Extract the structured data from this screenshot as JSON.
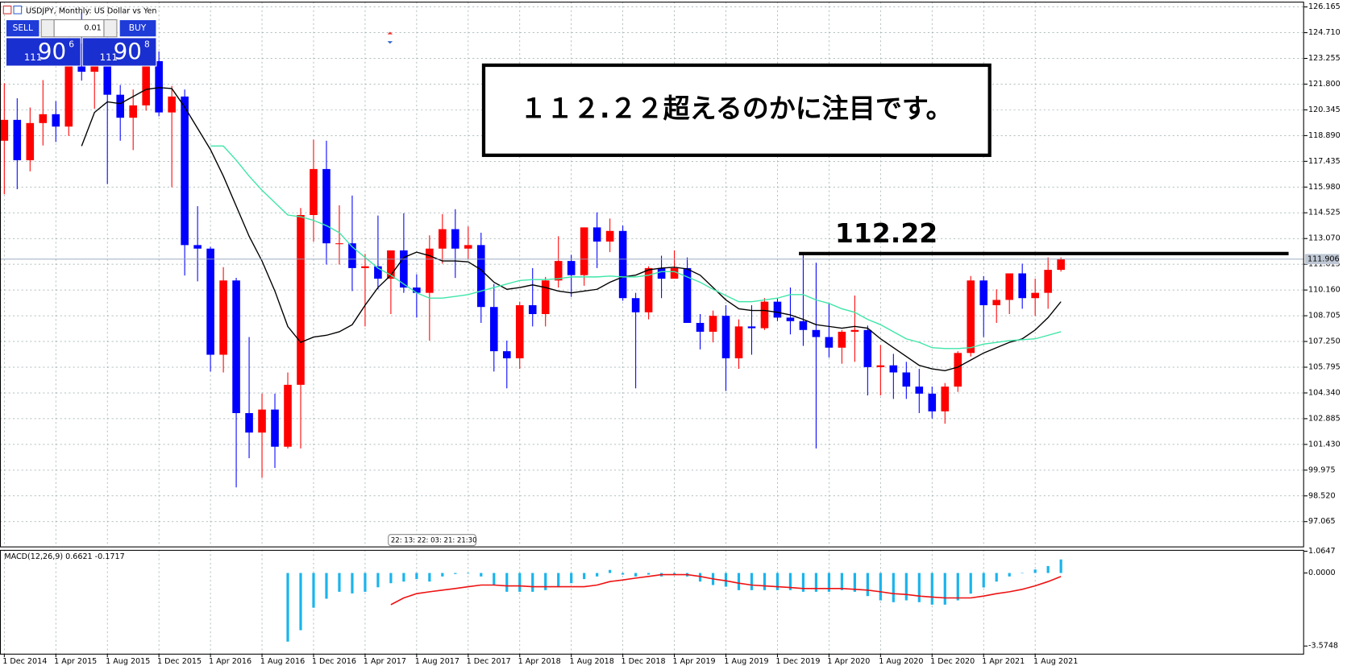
{
  "chart_data": {
    "type": "candlestick",
    "title": "USDJPY, Monthly: US Dollar vs Yen",
    "categories": [
      "1 Dec 2014",
      null,
      null,
      null,
      "1 Apr 2015",
      null,
      null,
      null,
      "1 Aug 2015",
      null,
      null,
      null,
      "1 Dec 2015",
      null,
      null,
      null,
      "1 Apr 2016",
      null,
      null,
      null,
      "1 Aug 2016",
      null,
      null,
      null,
      "1 Dec 2016",
      null,
      null,
      null,
      "1 Apr 2017",
      null,
      null,
      null,
      "1 Aug 2017",
      null,
      null,
      null,
      "1 Dec 2017",
      null,
      null,
      null,
      "1 Apr 2018",
      null,
      null,
      null,
      "1 Aug 2018",
      null,
      null,
      null,
      "1 Dec 2018",
      null,
      null,
      null,
      "1 Apr 2019",
      null,
      null,
      null,
      "1 Aug 2019",
      null,
      null,
      null,
      "1 Dec 2019",
      null,
      null,
      null,
      "1 Apr 2020",
      null,
      null,
      null,
      "1 Aug 2020",
      null,
      null,
      null,
      "1 Dec 2020",
      null,
      null,
      null,
      "1 Apr 2021",
      null,
      null,
      null,
      "1 Aug 2021",
      null,
      null
    ],
    "open": [
      118.6,
      119.78,
      117.5,
      119.6,
      120.1,
      119.4,
      124.1,
      122.5,
      123.9,
      121.2,
      119.9,
      120.6,
      123.1,
      120.2,
      121.1,
      112.7,
      112.5,
      106.5,
      110.7,
      103.2,
      102.1,
      103.4,
      101.3,
      104.8,
      114.4,
      117.0,
      112.8,
      112.8,
      111.4,
      111.5,
      110.8,
      112.4,
      110.3,
      110.0,
      112.5,
      113.6,
      112.5,
      112.7,
      109.2,
      106.7,
      106.3,
      109.3,
      108.8,
      110.7,
      111.8,
      111.0,
      113.7,
      112.9,
      113.5,
      109.7,
      108.9,
      111.4,
      110.8,
      111.4,
      108.3,
      107.8,
      108.7,
      106.3,
      108.1,
      108.0,
      109.5,
      108.6,
      108.4,
      107.9,
      107.5,
      106.9,
      107.8,
      107.9,
      105.8,
      105.9,
      105.5,
      104.7,
      104.3,
      103.3,
      104.7,
      106.6,
      110.7,
      109.3,
      109.6,
      111.1,
      109.7,
      110.0,
      111.3
    ],
    "high": [
      121.85,
      121.0,
      120.48,
      122.03,
      120.84,
      124.46,
      125.86,
      124.58,
      125.3,
      121.75,
      121.5,
      123.76,
      123.65,
      121.7,
      121.5,
      114.9,
      112.6,
      111.45,
      110.85,
      107.5,
      104.3,
      104.3,
      105.5,
      114.8,
      118.66,
      118.6,
      114.95,
      115.5,
      112.2,
      114.37,
      112.4,
      114.5,
      111.05,
      113.25,
      114.45,
      114.73,
      113.75,
      113.4,
      110.5,
      107.3,
      109.5,
      111.4,
      110.9,
      113.2,
      112.15,
      113.7,
      114.55,
      114.2,
      113.8,
      110.0,
      111.5,
      112.1,
      112.4,
      112.0,
      108.8,
      109.0,
      109.3,
      108.5,
      109.3,
      109.7,
      109.7,
      110.3,
      112.2,
      111.7,
      109.4,
      107.9,
      109.85,
      108.15,
      107.05,
      106.55,
      106.1,
      105.7,
      104.7,
      104.9,
      106.7,
      110.95,
      110.95,
      110.2,
      111.1,
      111.65,
      110.8,
      112.0,
      112.0
    ],
    "low": [
      115.57,
      115.86,
      116.87,
      118.33,
      118.53,
      118.87,
      122.0,
      120.41,
      116.15,
      118.6,
      118.07,
      120.3,
      119.98,
      115.97,
      110.98,
      110.65,
      105.55,
      105.5,
      99.0,
      100.65,
      99.55,
      100.1,
      101.2,
      101.2,
      112.9,
      111.6,
      111.6,
      110.1,
      108.1,
      110.2,
      108.8,
      110.0,
      108.6,
      107.3,
      111.65,
      110.84,
      111.9,
      108.3,
      105.55,
      104.6,
      105.7,
      108.1,
      108.1,
      110.3,
      109.77,
      110.4,
      111.4,
      112.3,
      109.55,
      104.6,
      108.5,
      109.7,
      110.8,
      108.3,
      106.8,
      107.2,
      104.45,
      105.7,
      106.5,
      107.9,
      108.4,
      107.65,
      107.0,
      101.2,
      106.35,
      105.99,
      106.1,
      104.2,
      104.2,
      104.0,
      104.0,
      103.2,
      102.9,
      102.6,
      104.4,
      106.4,
      107.5,
      108.3,
      108.8,
      109.1,
      108.7,
      109.1,
      111.2
    ],
    "close": [
      119.78,
      117.5,
      119.6,
      120.1,
      119.4,
      124.1,
      122.5,
      123.9,
      121.2,
      119.9,
      120.6,
      123.1,
      120.2,
      121.1,
      112.7,
      112.5,
      106.5,
      110.7,
      103.2,
      102.1,
      103.4,
      101.3,
      104.8,
      114.4,
      117.0,
      112.8,
      112.8,
      111.4,
      111.5,
      110.8,
      112.4,
      110.3,
      110.0,
      112.5,
      113.6,
      112.5,
      112.7,
      109.2,
      106.7,
      106.3,
      109.3,
      108.8,
      110.7,
      111.8,
      111.0,
      113.7,
      112.9,
      113.5,
      109.7,
      108.9,
      111.4,
      110.8,
      111.4,
      108.3,
      107.8,
      108.7,
      106.3,
      108.1,
      108.0,
      109.5,
      108.6,
      108.4,
      107.9,
      107.5,
      106.9,
      107.8,
      107.9,
      105.8,
      105.9,
      105.5,
      104.7,
      104.3,
      103.3,
      104.7,
      106.6,
      110.7,
      109.3,
      109.6,
      111.1,
      109.7,
      110.0,
      111.3,
      111.906
    ],
    "up_color": "#ff0000",
    "down_color": "#0000ff",
    "ylim": [
      95.66,
      126.46
    ],
    "yticks": [
      126.165,
      {
        "value": 124.71,
        "label": "124.710"
      },
      123.255,
      {
        "value": 121.8,
        "label": "121.800"
      },
      120.345,
      {
        "value": 118.89,
        "label": "118.890"
      },
      117.435,
      {
        "value": 115.98,
        "label": "115.980"
      },
      114.525,
      {
        "value": 113.07,
        "label": "113.070"
      },
      111.615,
      {
        "value": 110.16,
        "label": "110.160"
      },
      108.705,
      {
        "value": 107.25,
        "label": "107.250"
      },
      105.795,
      {
        "value": 104.34,
        "label": "104.340"
      },
      102.885,
      {
        "value": 101.43,
        "label": "101.430"
      },
      99.975,
      {
        "value": 98.52,
        "label": "98.520"
      },
      97.065
    ],
    "grid": true,
    "overlays": [
      {
        "color": "#000000",
        "values": [
          null,
          null,
          null,
          null,
          null,
          null,
          118.3,
          120.2,
          120.8,
          120.7,
          121.1,
          121.5,
          121.6,
          121.55,
          120.5,
          119.3,
          118.1,
          116.6,
          114.9,
          113.2,
          111.8,
          110.1,
          108.1,
          107.2,
          107.5,
          107.6,
          107.8,
          108.2,
          109.3,
          110.3,
          111.0,
          112.0,
          112.3,
          112.1,
          111.8,
          111.8,
          111.75,
          111.3,
          110.6,
          110.2,
          110.3,
          110.45,
          110.3,
          110.1,
          110.0,
          110.1,
          110.2,
          110.6,
          110.9,
          111.0,
          111.3,
          111.4,
          111.45,
          111.35,
          111.0,
          110.3,
          109.6,
          109.1,
          109.0,
          109.0,
          108.9,
          108.75,
          108.5,
          108.2,
          108.1,
          108.0,
          108.1,
          108.0,
          107.4,
          106.9,
          106.4,
          105.9,
          105.7,
          105.6,
          105.8,
          106.2,
          106.6,
          106.9,
          107.2,
          107.4,
          107.9,
          108.6,
          109.5
        ]
      },
      {
        "color": "#3ee6a8",
        "values": [
          null,
          null,
          null,
          null,
          null,
          null,
          null,
          null,
          null,
          null,
          null,
          null,
          null,
          null,
          null,
          null,
          118.3,
          118.3,
          117.5,
          116.6,
          115.8,
          115.1,
          114.4,
          114.3,
          114.1,
          113.8,
          113.4,
          112.6,
          112.0,
          111.4,
          111.0,
          110.5,
          110.0,
          109.7,
          109.7,
          109.8,
          109.9,
          110.1,
          110.3,
          110.5,
          110.7,
          110.75,
          110.75,
          110.8,
          110.9,
          110.9,
          110.9,
          110.95,
          110.9,
          110.9,
          111.0,
          111.2,
          111.2,
          110.9,
          110.6,
          110.2,
          109.85,
          109.5,
          109.5,
          109.6,
          109.7,
          109.9,
          109.9,
          109.6,
          109.4,
          109.1,
          108.9,
          108.5,
          108.2,
          107.8,
          107.4,
          107.2,
          106.9,
          106.85,
          106.85,
          106.9,
          107.1,
          107.2,
          107.3,
          107.35,
          107.4,
          107.6,
          107.8
        ]
      }
    ],
    "current_price": 111.906,
    "hline": 112.22,
    "annotation": "１１２.２２超えるのかに注目です。",
    "time_label": "22: 13: 22: 03: 21: 21:30",
    "trade_panel": {
      "sell": "SELL",
      "lot": "0.01",
      "buy": "BUY",
      "bid": [
        "111",
        "90",
        "6"
      ],
      "ask": [
        "111",
        "90",
        "8"
      ]
    },
    "macd": {
      "label": "MACD(12,26,9) 0.6621 -0.1717",
      "ylim": [
        -3.95,
        1.13
      ],
      "yticks": [
        1.0647,
        {
          "value": 0,
          "label": "0.0000"
        },
        -3.5748
      ],
      "histogram": {
        "color": "#1ab4ec",
        "values": [
          null,
          null,
          null,
          null,
          null,
          null,
          null,
          null,
          null,
          null,
          null,
          null,
          null,
          null,
          null,
          null,
          null,
          null,
          null,
          null,
          null,
          null,
          -3.36,
          -2.8,
          -1.7,
          -1.26,
          -0.92,
          -1.0,
          -0.92,
          -0.7,
          -0.5,
          -0.42,
          -0.3,
          -0.42,
          -0.17,
          -0.05,
          -0.03,
          -0.17,
          -0.59,
          -0.92,
          -0.92,
          -0.92,
          -0.84,
          -0.7,
          -0.5,
          -0.3,
          -0.17,
          0.15,
          -0.08,
          -0.17,
          -0.08,
          -0.17,
          -0.08,
          -0.17,
          -0.42,
          -0.59,
          -0.67,
          -0.84,
          -0.84,
          -0.84,
          -0.84,
          -0.84,
          -0.92,
          -0.92,
          -0.92,
          -0.84,
          -0.92,
          -1.13,
          -1.34,
          -1.43,
          -1.34,
          -1.43,
          -1.55,
          -1.55,
          -1.34,
          -1.01,
          -0.71,
          -0.42,
          -0.17,
          -0.01,
          0.17,
          0.34,
          0.6621
        ]
      },
      "signal": {
        "color": "#ee1111",
        "values": [
          null,
          null,
          null,
          null,
          null,
          null,
          null,
          null,
          null,
          null,
          null,
          null,
          null,
          null,
          null,
          null,
          null,
          null,
          null,
          null,
          null,
          null,
          null,
          null,
          null,
          null,
          null,
          null,
          null,
          null,
          -1.55,
          -1.22,
          -1.01,
          -0.92,
          -0.84,
          -0.76,
          -0.67,
          -0.59,
          -0.59,
          -0.63,
          -0.63,
          -0.67,
          -0.67,
          -0.67,
          -0.67,
          -0.67,
          -0.59,
          -0.42,
          -0.34,
          -0.25,
          -0.17,
          -0.08,
          -0.08,
          -0.08,
          -0.17,
          -0.29,
          -0.38,
          -0.5,
          -0.59,
          -0.63,
          -0.67,
          -0.71,
          -0.76,
          -0.76,
          -0.76,
          -0.76,
          -0.8,
          -0.84,
          -0.92,
          -1.01,
          -1.05,
          -1.13,
          -1.18,
          -1.22,
          -1.22,
          -1.22,
          -1.13,
          -1.01,
          -0.92,
          -0.8,
          -0.63,
          -0.42,
          -0.1717
        ]
      }
    }
  }
}
